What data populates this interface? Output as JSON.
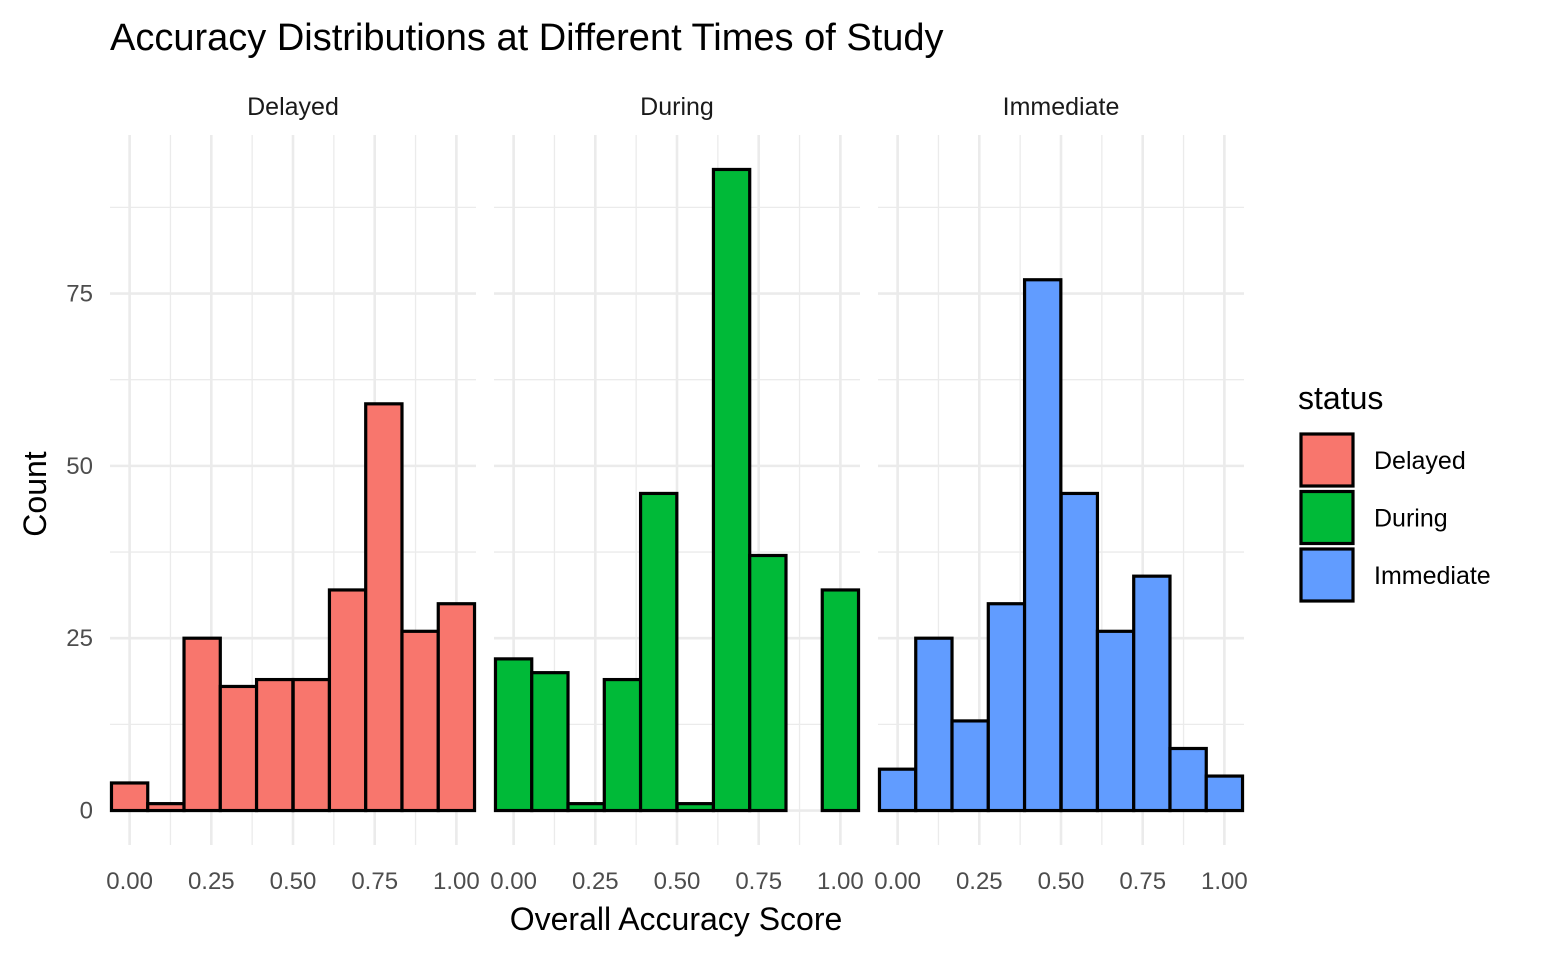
{
  "chart_data": {
    "type": "bar",
    "title": "Accuracy Distributions at Different Times of Study",
    "xlabel": "Overall Accuracy Score",
    "ylabel": "Count",
    "xlim": [
      -0.06,
      1.06
    ],
    "ylim": [
      -5,
      98
    ],
    "x_ticks": [
      "0.00",
      "0.25",
      "0.50",
      "0.75",
      "1.00"
    ],
    "y_ticks": [
      "0",
      "25",
      "50",
      "75"
    ],
    "grid": true,
    "legend": {
      "title": "status",
      "position": "right"
    },
    "bin_centers": [
      0.0,
      0.111,
      0.222,
      0.333,
      0.444,
      0.556,
      0.667,
      0.778,
      0.889,
      1.0
    ],
    "bin_width": 0.111,
    "panels": [
      {
        "name": "Delayed",
        "color": "#F8766D",
        "values": [
          4,
          1,
          25,
          18,
          19,
          19,
          32,
          59,
          26,
          30
        ]
      },
      {
        "name": "During",
        "color": "#00BA38",
        "values": [
          22,
          20,
          1,
          19,
          46,
          1,
          93,
          37,
          0,
          32
        ]
      },
      {
        "name": "Immediate",
        "color": "#619CFF",
        "values": [
          6,
          25,
          13,
          30,
          77,
          46,
          26,
          34,
          9,
          5
        ]
      }
    ]
  }
}
